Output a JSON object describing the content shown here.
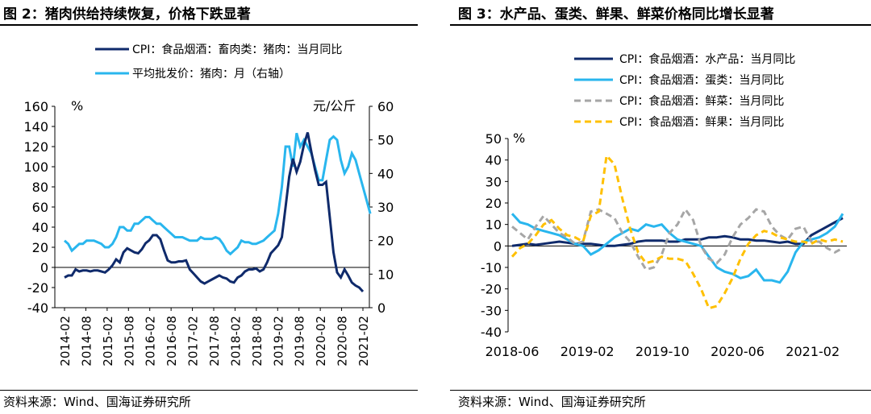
{
  "left": {
    "title": "图 2：猪肉供给持续恢复，价格下跌显著",
    "source": "资料来源：Wind、国海证券研究所"
  },
  "right": {
    "title": "图 3：水产品、蛋类、鲜果、鲜菜价格同比增长显著",
    "source": "资料来源：Wind、国海证券研究所"
  },
  "colors": {
    "dark_navy": "#0f2a6b",
    "sky_blue": "#29b6ee",
    "gray": "#a6a6a6",
    "gold": "#ffc000"
  },
  "chart_data": [
    {
      "type": "line",
      "unit_left": "%",
      "unit_right": "元/公斤",
      "x_ticks": [
        "2014-02",
        "2014-08",
        "2015-02",
        "2015-08",
        "2016-02",
        "2016-08",
        "2017-02",
        "2017-08",
        "2018-02",
        "2018-08",
        "2019-02",
        "2019-08",
        "2020-02",
        "2020-08",
        "2021-02"
      ],
      "ylim_left": [
        -40,
        160
      ],
      "yticks_left": [
        "-40",
        "-20",
        "0",
        "20",
        "40",
        "60",
        "80",
        "100",
        "120",
        "140",
        "160"
      ],
      "ylim_right": [
        0,
        60
      ],
      "yticks_right": [
        "0",
        "10",
        "20",
        "30",
        "40",
        "50",
        "60"
      ],
      "legend_placement": "top-left",
      "series": [
        {
          "name": "CPI：食品烟酒：畜肉类：猪肉：当月同比",
          "axis": "left",
          "color": "#0f2a6b",
          "values": [
            -10,
            -8,
            -8,
            -2,
            -4,
            -3,
            -3,
            -4,
            -3,
            -3,
            -4,
            -5,
            -2,
            2,
            8,
            5,
            15,
            19,
            17,
            15,
            14,
            18,
            24,
            27,
            32,
            32,
            28,
            17,
            7,
            5,
            5,
            6,
            6,
            7,
            -2,
            -6,
            -10,
            -14,
            -16,
            -14,
            -12,
            -10,
            -8,
            -10,
            -11,
            -14,
            -15,
            -10,
            -8,
            -4,
            -2,
            -2,
            -1,
            -4,
            -2,
            5,
            14,
            18,
            22,
            30,
            60,
            90,
            108,
            95,
            105,
            122,
            134,
            115,
            97,
            82,
            82,
            85,
            50,
            15,
            -5,
            -10,
            -2,
            -8,
            -15,
            -18,
            -20,
            -24
          ]
        },
        {
          "name": "平均批发价：猪肉：月（右轴）",
          "axis": "right",
          "color": "#29b6ee",
          "values": [
            20,
            19,
            17,
            18,
            19,
            19,
            20,
            20,
            20,
            19.5,
            19,
            18,
            18,
            19,
            21,
            24,
            24,
            23,
            23,
            25,
            25,
            26,
            27,
            27,
            26,
            25,
            25,
            24,
            23,
            22,
            21,
            21,
            21,
            20.5,
            20,
            20,
            20,
            21,
            20.5,
            20.5,
            20.5,
            21,
            20.5,
            19,
            17,
            16,
            17,
            18,
            20,
            19.5,
            19.5,
            19,
            19,
            19.5,
            20,
            21,
            22,
            23,
            28,
            36,
            48,
            48,
            42,
            52,
            48,
            50,
            48,
            46,
            42,
            38,
            38,
            44,
            50,
            51,
            50,
            44,
            40,
            42,
            46,
            44,
            40,
            36,
            32,
            28
          ]
        }
      ]
    },
    {
      "type": "line",
      "unit_left": "%",
      "x_ticks": [
        "2018-06",
        "2019-02",
        "2019-10",
        "2020-06",
        "2021-02"
      ],
      "ylim": [
        -40,
        50
      ],
      "yticks": [
        "-40",
        "-30",
        "-20",
        "-10",
        "0",
        "10",
        "20",
        "30",
        "40",
        "50"
      ],
      "legend_placement": "top",
      "series": [
        {
          "name": "CPI：食品烟酒：水产品：当月同比",
          "color": "#0f2a6b",
          "dash": "solid",
          "values": [
            0,
            0.5,
            1,
            0.5,
            1,
            1.5,
            2,
            1.5,
            1,
            1,
            1,
            0.5,
            0,
            0,
            0.5,
            1,
            2,
            2.5,
            2.5,
            2.5,
            2,
            2,
            3,
            3,
            3,
            4,
            4,
            4.5,
            4,
            3,
            3,
            2.5,
            2.5,
            2,
            1.5,
            2,
            1,
            1,
            5,
            7,
            9,
            11,
            13
          ]
        },
        {
          "name": "CPI：食品烟酒：蛋类：当月同比",
          "color": "#29b6ee",
          "dash": "solid",
          "values": [
            15,
            11,
            10,
            8,
            7,
            6,
            5,
            3,
            1,
            0,
            -4,
            -2,
            1,
            4,
            6,
            8,
            7,
            10,
            9,
            10,
            6,
            3,
            2,
            1,
            0,
            -5,
            -10,
            -12,
            -13,
            -15,
            -14,
            -11,
            -16,
            -16,
            -17,
            -12,
            -3,
            2,
            3,
            4,
            6,
            9,
            15
          ]
        },
        {
          "name": "CPI：食品烟酒：鲜菜：当月同比",
          "color": "#a6a6a6",
          "dash": "dashed",
          "values": [
            9,
            6,
            3,
            9,
            14,
            10,
            6,
            4,
            1,
            2,
            16,
            17,
            15,
            13,
            6,
            2,
            -5,
            -11,
            -10,
            -4,
            6,
            10,
            17,
            12,
            0,
            -6,
            -8,
            -4,
            4,
            10,
            13,
            17,
            16,
            9,
            5,
            3,
            8,
            9,
            2,
            2,
            -1,
            -3,
            -1
          ]
        },
        {
          "name": "CPI：食品烟酒：鲜果：当月同比",
          "color": "#ffc000",
          "dash": "dashed",
          "values": [
            -5,
            -1,
            1,
            5,
            10,
            12,
            8,
            5,
            4,
            2,
            14,
            16,
            42,
            38,
            22,
            8,
            -3,
            -8,
            -7,
            -5,
            -6,
            -6,
            -7,
            -13,
            -20,
            -29,
            -28,
            -22,
            -15,
            -6,
            1,
            5,
            7,
            6,
            4,
            3,
            2,
            2,
            1,
            3,
            2,
            3,
            2
          ]
        }
      ]
    }
  ]
}
